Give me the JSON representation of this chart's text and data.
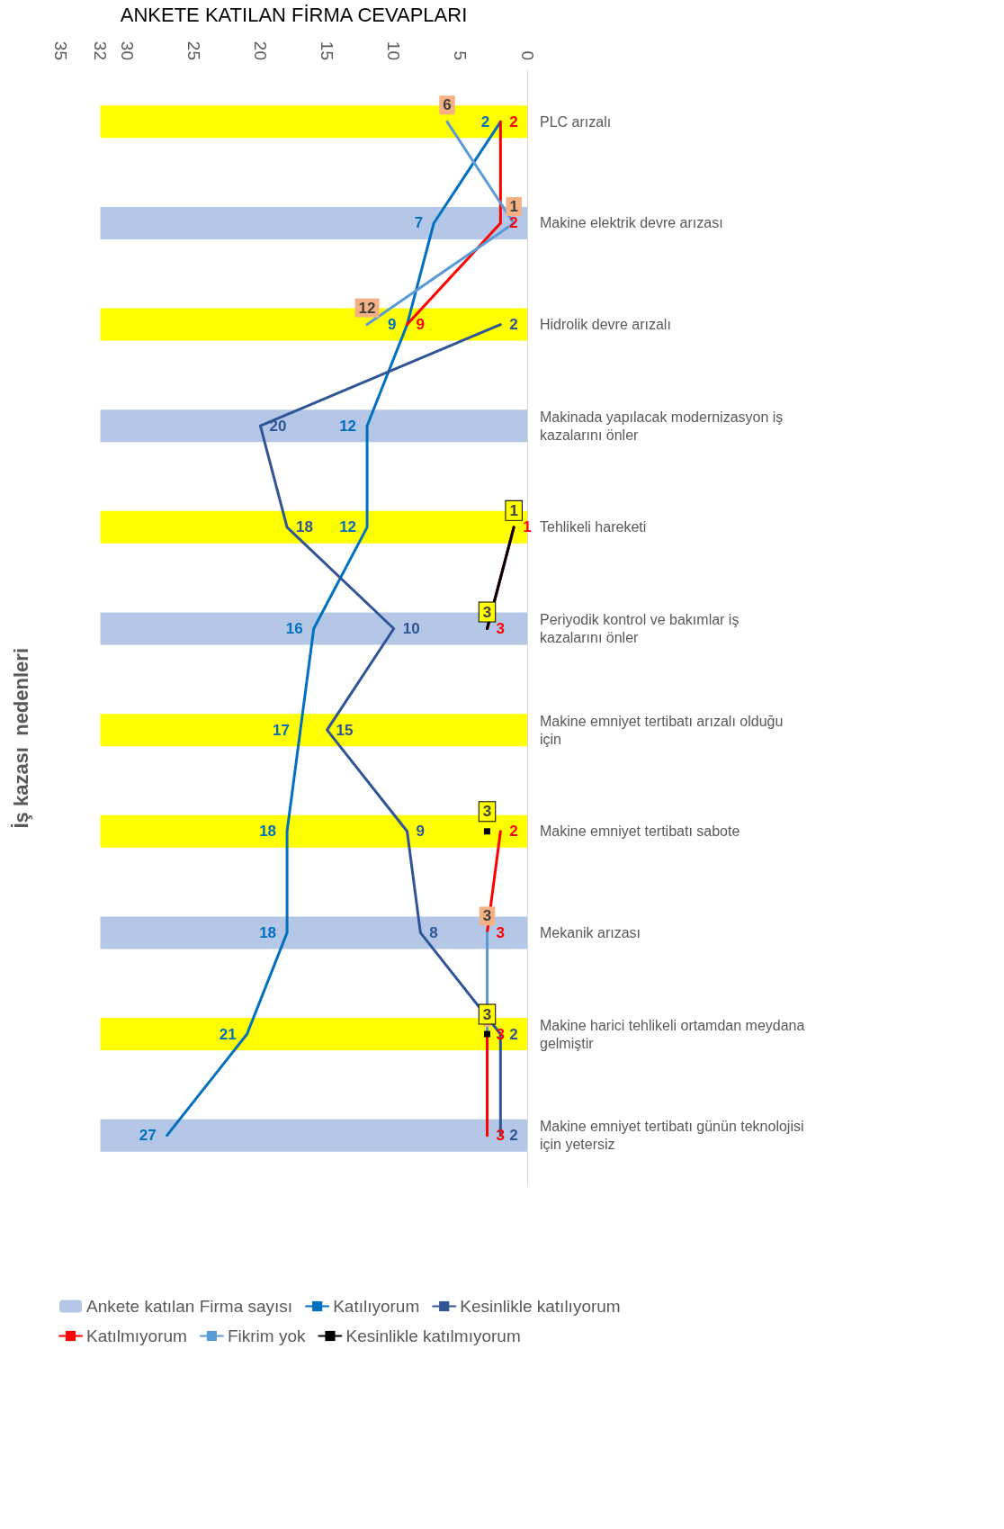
{
  "chart_data": {
    "type": "bar",
    "orientation": "horizontal",
    "title": "İş kazası  nedenleri",
    "xlabel": "ANKETE KATILAN FİRMA CEVAPLARI",
    "categories": [
      "PLC arızalı",
      "Makine elektrik devre arızası",
      "Hidrolik devre arızalı",
      "Makinada yapılacak modernizasyon iş kazalarını önler",
      "Tehlikeli hareketi",
      "Periyodik kontrol ve bakımlar iş kazalarını önler",
      "Makine emniyet tertibatı arızalı olduğu için",
      "Makine emniyet tertibatı sabote",
      "Mekanik arızası",
      "Makine harici tehlikeli ortamdan meydana gelmiştir",
      "Makine emniyet tertibatı günün teknolojisi için yetersiz"
    ],
    "series": [
      {
        "name": "Ankete katılan Firma sayısı",
        "color": "#b4c7e7",
        "colors": [
          "#ffff00",
          "#b4c7e7",
          "#ffff00",
          "#b4c7e7",
          "#ffff00",
          "#b4c7e7",
          "#ffff00",
          "#ffff00",
          "#b4c7e7",
          "#ffff00",
          "#b4c7e7"
        ],
        "values": [
          32,
          32,
          32,
          32,
          32,
          32,
          32,
          32,
          32,
          32,
          32
        ]
      },
      {
        "name": "Katılıyorum",
        "type": "line",
        "color": "#0070c0",
        "values": [
          2,
          7,
          9,
          12,
          12,
          16,
          17,
          18,
          18,
          21,
          27
        ],
        "value_labels": [
          "2",
          "7",
          "9",
          "12",
          "12",
          "16",
          "17",
          "18",
          "18",
          "21",
          "27"
        ]
      },
      {
        "name": "Kesinlikle katılıyorum",
        "type": "line",
        "color": "#2f5597",
        "values": [
          null,
          null,
          2,
          20,
          18,
          10,
          15,
          9,
          8,
          2,
          2
        ],
        "value_labels": [
          null,
          null,
          "2",
          "20",
          "18",
          "10",
          "15",
          "9",
          "8",
          "2",
          "2"
        ]
      },
      {
        "name": "Katılmıyorum",
        "type": "line",
        "color": "#ff0000",
        "values": [
          2,
          2,
          9,
          null,
          1,
          3,
          null,
          2,
          3,
          3,
          3
        ],
        "value_labels": [
          "2",
          "2",
          "9",
          null,
          "1",
          "3",
          null,
          "2",
          "3",
          "3",
          "3"
        ]
      },
      {
        "name": "Fikrim yok",
        "type": "line",
        "color": "#5b9bd5",
        "values": [
          6,
          1,
          12,
          null,
          null,
          null,
          null,
          null,
          3,
          3,
          null
        ],
        "value_labels": [
          "6",
          "1",
          "12",
          null,
          null,
          null,
          null,
          null,
          "3",
          null,
          null
        ]
      },
      {
        "name": "Kesinlikle katılmıyorum",
        "type": "line",
        "color": "#000000",
        "values": [
          null,
          null,
          null,
          null,
          1,
          3,
          null,
          3,
          null,
          3,
          null
        ],
        "value_labels": [
          null,
          null,
          null,
          null,
          "1",
          "3",
          null,
          "3",
          null,
          "3",
          null
        ]
      }
    ],
    "xlim": [
      35,
      0
    ],
    "xticks": [
      0,
      5,
      10,
      15,
      20,
      25,
      30,
      32,
      35
    ],
    "legend": "bottom"
  }
}
